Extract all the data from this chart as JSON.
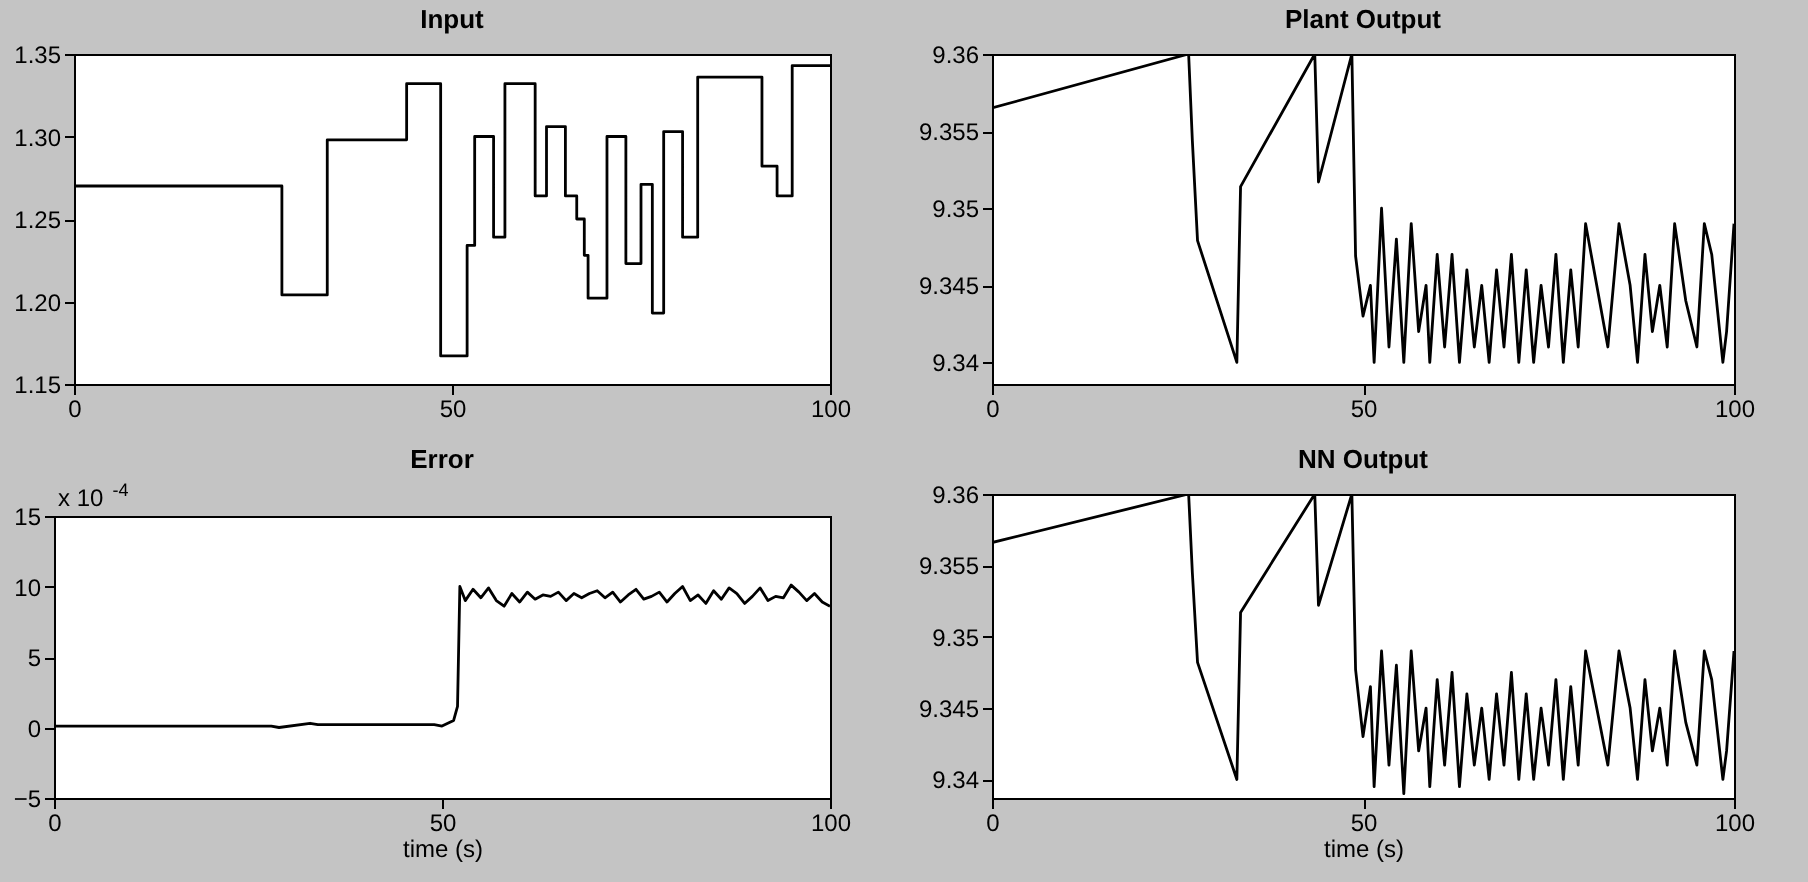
{
  "chart_data": [
    {
      "type": "step",
      "title": "Input",
      "xlim": [
        0,
        100
      ],
      "xticks": [
        0,
        50,
        100
      ],
      "ylim": [
        1.15,
        1.35
      ],
      "yticks": [
        {
          "value": 1.15,
          "label": "1.15"
        },
        {
          "value": 1.2,
          "label": "1.20"
        },
        {
          "value": 1.25,
          "label": "1.25"
        },
        {
          "value": 1.3,
          "label": "1.30"
        },
        {
          "value": 1.35,
          "label": "1.35"
        }
      ],
      "grid": false,
      "series": [
        {
          "color": "#000000",
          "x": [
            0,
            27.5,
            33.5,
            44,
            48.5,
            52,
            53,
            55.5,
            57,
            61,
            62.5,
            65,
            66.5,
            67.5,
            68,
            70.5,
            73,
            75,
            76.5,
            78,
            80.5,
            82.5,
            91,
            93,
            95,
            100
          ],
          "values": [
            1.27,
            1.204,
            1.298,
            1.332,
            1.167,
            1.234,
            1.3,
            1.239,
            1.332,
            1.264,
            1.306,
            1.264,
            1.25,
            1.228,
            1.202,
            1.3,
            1.223,
            1.271,
            1.193,
            1.303,
            1.239,
            1.336,
            1.282,
            1.264,
            1.343,
            1.343
          ]
        }
      ]
    },
    {
      "type": "line",
      "title": "Plant Output",
      "xlim": [
        0,
        100
      ],
      "xticks": [
        0,
        50,
        100
      ],
      "ylim": [
        9.3386,
        9.36
      ],
      "yticks": [
        9.34,
        9.345,
        9.35,
        9.355,
        9.36
      ],
      "grid": false,
      "series": [
        {
          "color": "#000000",
          "x": [
            0,
            26.5,
            27,
            27.7,
            33,
            33.5,
            43.5,
            44,
            48.5,
            49,
            50,
            51,
            51.5,
            52.5,
            53.5,
            54.5,
            55.5,
            56.5,
            57.5,
            58.5,
            59,
            60,
            61,
            62,
            63,
            64,
            65,
            66,
            67,
            68,
            69,
            70,
            71,
            72,
            73,
            74,
            75,
            76,
            77,
            78,
            79,
            80,
            81.5,
            83,
            84.5,
            86,
            87,
            88,
            89,
            90,
            91,
            92,
            93.5,
            95,
            96,
            97,
            98.5,
            99,
            100
          ],
          "values": [
            9.3565,
            9.36,
            9.3544,
            9.3479,
            9.34,
            9.3514,
            9.36,
            9.3517,
            9.36,
            9.3469,
            9.343,
            9.345,
            9.34,
            9.35,
            9.341,
            9.348,
            9.34,
            9.349,
            9.342,
            9.345,
            9.34,
            9.347,
            9.341,
            9.347,
            9.34,
            9.346,
            9.341,
            9.345,
            9.34,
            9.346,
            9.341,
            9.347,
            9.34,
            9.346,
            9.34,
            9.345,
            9.341,
            9.347,
            9.34,
            9.346,
            9.341,
            9.349,
            9.345,
            9.341,
            9.349,
            9.345,
            9.34,
            9.347,
            9.342,
            9.345,
            9.341,
            9.349,
            9.344,
            9.341,
            9.349,
            9.347,
            9.34,
            9.342,
            9.349
          ]
        }
      ]
    },
    {
      "type": "line",
      "title": "Error",
      "xlabel": "time (s)",
      "annotations": [
        "x 10$^{-4}$"
      ],
      "xlim": [
        0,
        100
      ],
      "xticks": [
        0,
        50,
        100
      ],
      "ylim": [
        -5,
        15
      ],
      "yticks": [
        -5,
        0,
        5,
        10,
        15
      ],
      "grid": false,
      "series": [
        {
          "color": "#000000",
          "x": [
            0,
            28,
            29,
            33,
            34,
            49,
            50,
            51.5,
            52,
            52.3,
            53,
            54,
            55,
            56,
            57,
            58,
            59,
            60,
            61,
            62,
            63,
            64,
            65,
            66,
            67,
            68,
            69,
            70,
            71,
            72,
            73,
            74,
            75,
            76,
            77,
            78,
            79,
            80,
            81,
            82,
            83,
            84,
            85,
            86,
            87,
            88,
            89,
            90,
            91,
            92,
            93,
            94,
            95,
            96,
            97,
            98,
            99,
            100
          ],
          "values": [
            0.1,
            0.1,
            0.0,
            0.3,
            0.2,
            0.2,
            0.1,
            0.5,
            1.5,
            10,
            9.0,
            9.8,
            9.2,
            9.9,
            9.0,
            8.6,
            9.5,
            8.9,
            9.6,
            9.1,
            9.4,
            9.3,
            9.6,
            9.0,
            9.5,
            9.2,
            9.5,
            9.7,
            9.2,
            9.6,
            8.9,
            9.4,
            9.8,
            9.1,
            9.3,
            9.6,
            8.9,
            9.5,
            10,
            9.0,
            9.4,
            8.8,
            9.7,
            9.1,
            9.9,
            9.5,
            8.8,
            9.3,
            9.9,
            9.0,
            9.3,
            9.2,
            10.1,
            9.6,
            9.0,
            9.5,
            8.9,
            8.6
          ]
        }
      ]
    },
    {
      "type": "line",
      "title": "NN Output",
      "xlabel": "time (s)",
      "xlim": [
        0,
        100
      ],
      "xticks": [
        0,
        50,
        100
      ],
      "ylim": [
        9.3387,
        9.36
      ],
      "yticks": [
        9.34,
        9.345,
        9.35,
        9.355,
        9.36
      ],
      "grid": false,
      "series": [
        {
          "color": "#000000",
          "x": [
            0,
            26.5,
            27,
            27.7,
            33,
            33.5,
            43.5,
            44,
            48.5,
            49,
            50,
            51,
            51.5,
            52.5,
            53.5,
            54.5,
            55.5,
            56.5,
            57.5,
            58.5,
            59,
            60,
            61,
            62,
            63,
            64,
            65,
            66,
            67,
            68,
            69,
            70,
            71,
            72,
            73,
            74,
            75,
            76,
            77,
            78,
            79,
            80,
            81.5,
            83,
            84.5,
            86,
            87,
            88,
            89,
            90,
            91,
            92,
            93.5,
            95,
            96,
            97,
            98.5,
            99,
            100
          ],
          "values": [
            9.3566,
            9.36,
            9.3545,
            9.3482,
            9.34,
            9.3517,
            9.36,
            9.3522,
            9.36,
            9.3477,
            9.343,
            9.3465,
            9.3395,
            9.349,
            9.341,
            9.348,
            9.339,
            9.349,
            9.342,
            9.345,
            9.3395,
            9.347,
            9.341,
            9.3475,
            9.3395,
            9.346,
            9.341,
            9.345,
            9.34,
            9.346,
            9.341,
            9.3475,
            9.34,
            9.346,
            9.34,
            9.345,
            9.341,
            9.347,
            9.34,
            9.3465,
            9.341,
            9.349,
            9.345,
            9.341,
            9.349,
            9.345,
            9.34,
            9.347,
            9.342,
            9.345,
            9.341,
            9.349,
            9.344,
            9.341,
            9.349,
            9.347,
            9.34,
            9.342,
            9.349
          ]
        }
      ]
    }
  ]
}
